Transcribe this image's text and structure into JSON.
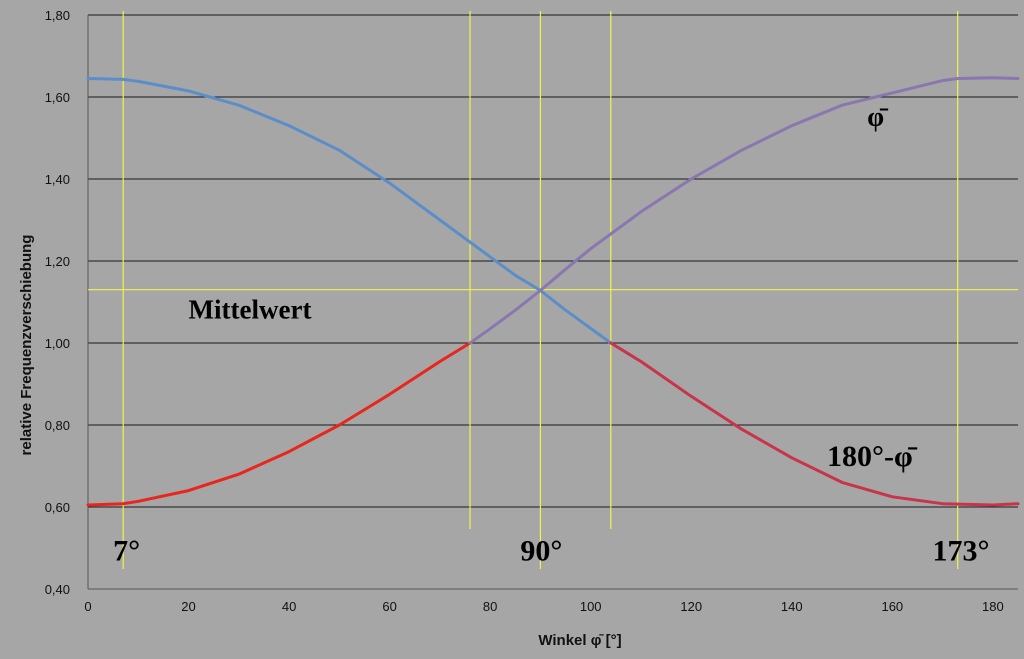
{
  "chart_data": {
    "type": "line",
    "xlabel": "Winkel φ̄ [°]",
    "ylabel": "relative Frequenzverschiebung",
    "xlim": [
      0,
      185
    ],
    "ylim": [
      0.4,
      1.8
    ],
    "x_ticks": [
      "0",
      "20",
      "40",
      "60",
      "80",
      "100",
      "120",
      "140",
      "160",
      "180"
    ],
    "x_tick_values": [
      0,
      20,
      40,
      60,
      80,
      100,
      120,
      140,
      160,
      180
    ],
    "y_ticks": [
      "0,40",
      "0,60",
      "0,80",
      "1,00",
      "1,20",
      "1,40",
      "1,60",
      "1,80"
    ],
    "y_tick_values": [
      0.4,
      0.6,
      0.8,
      1.0,
      1.2,
      1.4,
      1.6,
      1.8
    ],
    "grid": "horizontal",
    "mean_value": 1.13,
    "vertical_markers": [
      7,
      76,
      90,
      104,
      173
    ],
    "series": [
      {
        "name": "φ̄",
        "color": "#8a77b0",
        "x": [
          76,
          80,
          85,
          90,
          95,
          100,
          110,
          120,
          130,
          140,
          150,
          160,
          170,
          173,
          180,
          185
        ],
        "values": [
          1.0,
          1.035,
          1.08,
          1.128,
          1.18,
          1.23,
          1.32,
          1.4,
          1.47,
          1.53,
          1.58,
          1.61,
          1.64,
          1.645,
          1.647,
          1.645
        ]
      },
      {
        "name": "180°-φ̄",
        "color": "#c8344a",
        "x": [
          104,
          110,
          120,
          130,
          140,
          150,
          160,
          170,
          173,
          180,
          185
        ],
        "values": [
          1.0,
          0.955,
          0.87,
          0.79,
          0.72,
          0.66,
          0.625,
          0.608,
          0.607,
          0.605,
          0.608
        ]
      },
      {
        "color": "#e8261e",
        "x": [
          0,
          7,
          10,
          20,
          30,
          40,
          50,
          60,
          70,
          76
        ],
        "values": [
          0.605,
          0.608,
          0.614,
          0.64,
          0.68,
          0.735,
          0.8,
          0.875,
          0.955,
          1.0
        ]
      },
      {
        "color": "#5b8ec9",
        "x": [
          0,
          7,
          10,
          20,
          30,
          40,
          50,
          60,
          70,
          80,
          85,
          90,
          95,
          104
        ],
        "values": [
          1.645,
          1.643,
          1.638,
          1.615,
          1.58,
          1.53,
          1.47,
          1.39,
          1.3,
          1.21,
          1.165,
          1.128,
          1.08,
          1.0
        ]
      }
    ],
    "annotations": [
      {
        "text": "Mittelwert",
        "x": 20,
        "y": 1.06,
        "size": 27
      },
      {
        "text": "φ̄",
        "x": 155,
        "y": 1.53,
        "size": 27
      },
      {
        "text": "180°-φ̄",
        "x": 147,
        "y": 0.7,
        "size": 30
      },
      {
        "text": "7°",
        "x": 5,
        "y": 0.47,
        "size": 30
      },
      {
        "text": "90°",
        "x": 86,
        "y": 0.47,
        "size": 30
      },
      {
        "text": "173°",
        "x": 168,
        "y": 0.47,
        "size": 30
      }
    ]
  }
}
